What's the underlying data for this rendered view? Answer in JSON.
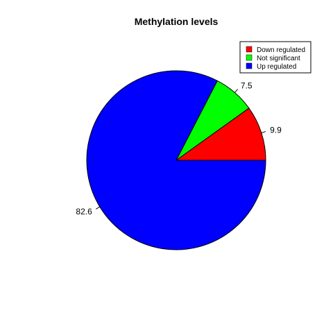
{
  "chart_data": {
    "type": "pie",
    "title": "Methylation levels",
    "slices": [
      {
        "label": "Down regulated",
        "value": 9.9,
        "color": "#FF0000",
        "value_label": "9.9"
      },
      {
        "label": "Not significant",
        "value": 7.5,
        "color": "#00FF00",
        "value_label": "7.5"
      },
      {
        "label": "Up regulated",
        "value": 82.6,
        "color": "#0000FF",
        "value_label": "82.6"
      }
    ],
    "start_angle_deg": 0,
    "direction": "counterclockwise",
    "legend_position": "top-right",
    "border_color": "#000000"
  }
}
